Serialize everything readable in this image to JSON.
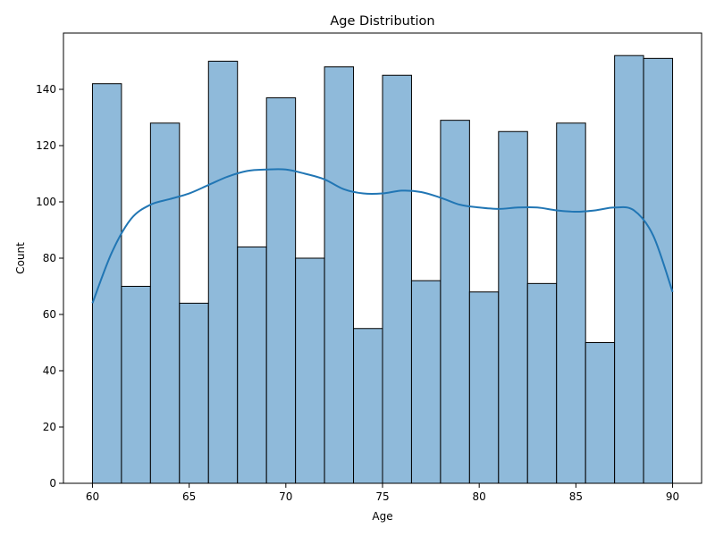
{
  "chart_data": {
    "type": "bar",
    "subtype": "histogram-with-kde",
    "title": "Age Distribution",
    "xlabel": "Age",
    "ylabel": "Count",
    "xlim": [
      58.5,
      91.5
    ],
    "ylim": [
      0,
      160
    ],
    "xticks": [
      60,
      65,
      70,
      75,
      80,
      85,
      90
    ],
    "yticks": [
      0,
      20,
      40,
      60,
      80,
      100,
      120,
      140
    ],
    "bin_edges": [
      60,
      61.5,
      63,
      64.5,
      66,
      67.5,
      69,
      70.5,
      72,
      73.5,
      75,
      76.5,
      78,
      79.5,
      81,
      82.5,
      84,
      85.5,
      87,
      88.5,
      90
    ],
    "values": [
      142,
      70,
      128,
      64,
      150,
      84,
      137,
      80,
      148,
      55,
      145,
      72,
      129,
      68,
      125,
      71,
      128,
      50,
      152,
      151
    ],
    "kde": {
      "x": [
        60,
        61,
        62,
        63,
        64,
        65,
        66,
        67,
        68,
        69,
        70,
        71,
        72,
        73,
        74,
        75,
        76,
        77,
        78,
        79,
        80,
        81,
        82,
        83,
        84,
        85,
        86,
        87,
        88,
        89,
        90
      ],
      "y": [
        64,
        82,
        94,
        99,
        101,
        103,
        106,
        109,
        111,
        111.5,
        111.5,
        110,
        108,
        104.5,
        103,
        103,
        104,
        103.5,
        101.5,
        99,
        98,
        97.5,
        98,
        98,
        97,
        96.5,
        97,
        98,
        97,
        88,
        68
      ]
    },
    "colors": {
      "bar_fill": "#8fbada",
      "bar_edge": "#000000",
      "kde_line": "#2176b4"
    },
    "grid": false,
    "legend": "none"
  }
}
